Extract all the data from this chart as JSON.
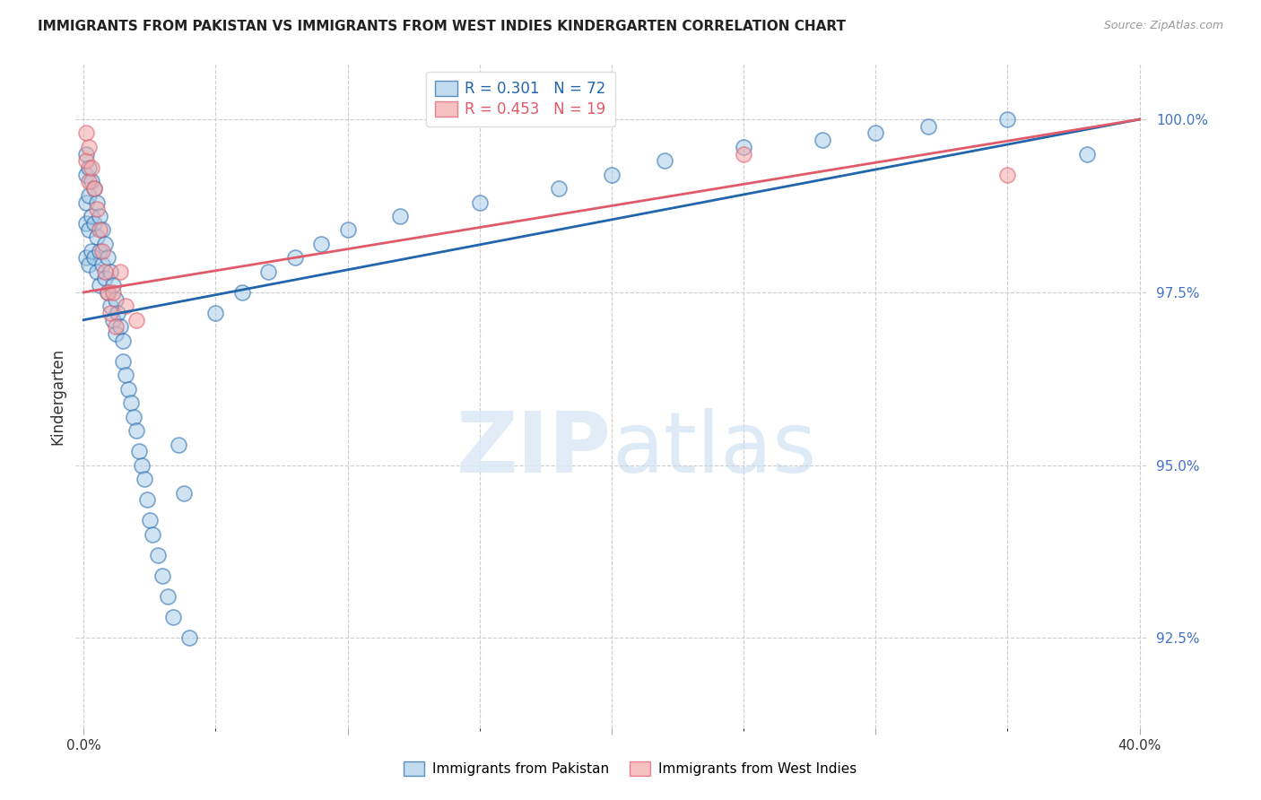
{
  "title": "IMMIGRANTS FROM PAKISTAN VS IMMIGRANTS FROM WEST INDIES KINDERGARTEN CORRELATION CHART",
  "source": "Source: ZipAtlas.com",
  "pakistan_R": 0.301,
  "pakistan_N": 72,
  "westindies_R": 0.453,
  "westindies_N": 19,
  "pakistan_color": "#a8cce8",
  "westindies_color": "#f4a7a7",
  "pakistan_line_color": "#2166ac",
  "westindies_line_color": "#e05a6a",
  "background_color": "#ffffff",
  "ytick_color": "#4472c4",
  "xtick_color": "#333333",
  "ylabel": "Kindergarten",
  "yticks": [
    92.5,
    95.0,
    97.5,
    100.0
  ],
  "xticks": [
    0.0,
    0.1,
    0.2,
    0.3,
    0.4
  ],
  "xtick_labels": [
    "0.0%",
    "",
    "",
    "",
    "40.0%"
  ],
  "xlim": [
    -0.003,
    0.403
  ],
  "ylim": [
    91.2,
    100.8
  ],
  "pakistan_x": [
    0.001,
    0.001,
    0.001,
    0.001,
    0.001,
    0.002,
    0.002,
    0.002,
    0.002,
    0.003,
    0.003,
    0.003,
    0.004,
    0.004,
    0.004,
    0.005,
    0.005,
    0.005,
    0.006,
    0.006,
    0.006,
    0.007,
    0.007,
    0.008,
    0.008,
    0.009,
    0.009,
    0.01,
    0.01,
    0.011,
    0.011,
    0.012,
    0.012,
    0.013,
    0.014,
    0.015,
    0.015,
    0.016,
    0.017,
    0.018,
    0.019,
    0.02,
    0.021,
    0.022,
    0.023,
    0.024,
    0.025,
    0.026,
    0.028,
    0.03,
    0.032,
    0.034,
    0.036,
    0.038,
    0.04,
    0.05,
    0.06,
    0.07,
    0.08,
    0.09,
    0.1,
    0.12,
    0.15,
    0.18,
    0.2,
    0.22,
    0.25,
    0.28,
    0.3,
    0.32,
    0.35,
    0.38
  ],
  "pakistan_y": [
    99.5,
    99.2,
    98.8,
    98.5,
    98.0,
    99.3,
    98.9,
    98.4,
    97.9,
    99.1,
    98.6,
    98.1,
    99.0,
    98.5,
    98.0,
    98.8,
    98.3,
    97.8,
    98.6,
    98.1,
    97.6,
    98.4,
    97.9,
    98.2,
    97.7,
    98.0,
    97.5,
    97.8,
    97.3,
    97.6,
    97.1,
    97.4,
    96.9,
    97.2,
    97.0,
    96.8,
    96.5,
    96.3,
    96.1,
    95.9,
    95.7,
    95.5,
    95.2,
    95.0,
    94.8,
    94.5,
    94.2,
    94.0,
    93.7,
    93.4,
    93.1,
    92.8,
    95.3,
    94.6,
    92.5,
    97.2,
    97.5,
    97.8,
    98.0,
    98.2,
    98.4,
    98.6,
    98.8,
    99.0,
    99.2,
    99.4,
    99.6,
    99.7,
    99.8,
    99.9,
    100.0,
    99.5
  ],
  "westindies_x": [
    0.001,
    0.001,
    0.002,
    0.002,
    0.003,
    0.004,
    0.005,
    0.006,
    0.007,
    0.008,
    0.009,
    0.01,
    0.011,
    0.012,
    0.014,
    0.016,
    0.02,
    0.25,
    0.35
  ],
  "westindies_y": [
    99.8,
    99.4,
    99.6,
    99.1,
    99.3,
    99.0,
    98.7,
    98.4,
    98.1,
    97.8,
    97.5,
    97.2,
    97.5,
    97.0,
    97.8,
    97.3,
    97.1,
    99.5,
    99.2
  ],
  "pak_line_x0": 0.0,
  "pak_line_x1": 0.4,
  "pak_line_y0": 97.1,
  "pak_line_y1": 100.0,
  "wi_line_x0": 0.0,
  "wi_line_x1": 0.4,
  "wi_line_y0": 97.5,
  "wi_line_y1": 100.0
}
